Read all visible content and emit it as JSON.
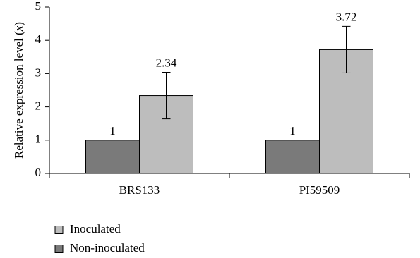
{
  "chart_data": {
    "type": "bar",
    "categories": [
      "BRS133",
      "PI59509"
    ],
    "series": [
      {
        "name": "Non-inoculated",
        "values": [
          1,
          1
        ],
        "errors": [
          0,
          0
        ],
        "labels": [
          "1",
          "1"
        ],
        "color": "#7a7a7a"
      },
      {
        "name": "Inoculated",
        "values": [
          2.34,
          3.72
        ],
        "errors": [
          0.7,
          0.7
        ],
        "labels": [
          "2.34",
          "3.72"
        ],
        "color": "#bdbdbd"
      }
    ],
    "title": "",
    "xlabel": "",
    "ylabel": "Relative expression level (x)",
    "ylim": [
      0,
      5
    ],
    "yticks": [
      0,
      1,
      2,
      3,
      4,
      5
    ],
    "grid": false,
    "legend": {
      "placement": "bottom-left",
      "entries": [
        {
          "label": "Inoculated",
          "color": "#bdbdbd"
        },
        {
          "label": "Non-inoculated",
          "color": "#7a7a7a"
        }
      ]
    }
  }
}
